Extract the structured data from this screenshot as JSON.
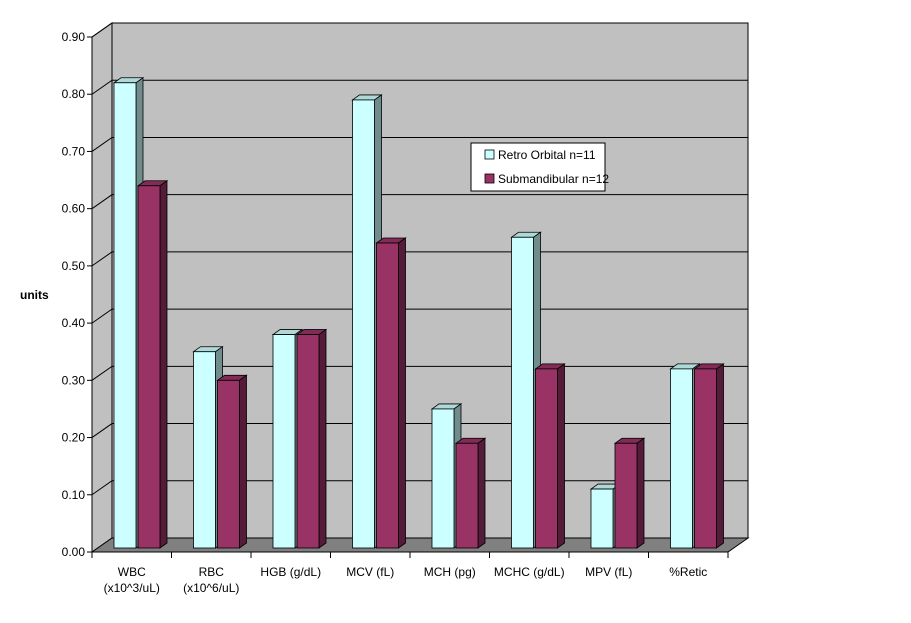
{
  "chart_data": {
    "type": "bar",
    "title": "",
    "xlabel": "",
    "ylabel": "units",
    "ylim": [
      0,
      0.9
    ],
    "yticks": [
      "0.00",
      "0.10",
      "0.20",
      "0.30",
      "0.40",
      "0.50",
      "0.60",
      "0.70",
      "0.80",
      "0.90"
    ],
    "grid": true,
    "legend_position": "upper-right-inside",
    "categories": [
      [
        "WBC",
        "(x10^3/uL)"
      ],
      [
        "RBC",
        "(x10^6/uL)"
      ],
      [
        "HGB (g/dL)"
      ],
      [
        "MCV (fL)"
      ],
      [
        "MCH (pg)"
      ],
      [
        "MCHC (g/dL)"
      ],
      [
        "MPV (fL)"
      ],
      [
        "%Retic"
      ]
    ],
    "series": [
      {
        "name": "Retro Orbital  n=11",
        "color": "#CCFFFF",
        "values": [
          0.82,
          0.35,
          0.38,
          0.79,
          0.25,
          0.55,
          0.11,
          0.32
        ]
      },
      {
        "name": "Submandibular  n=12",
        "color": "#993366",
        "values": [
          0.64,
          0.3,
          0.38,
          0.54,
          0.19,
          0.32,
          0.19,
          0.32
        ]
      }
    ],
    "colors": {
      "plot_wall": "#C0C0C0",
      "floor": "#808080",
      "gridline": "#000000"
    }
  }
}
